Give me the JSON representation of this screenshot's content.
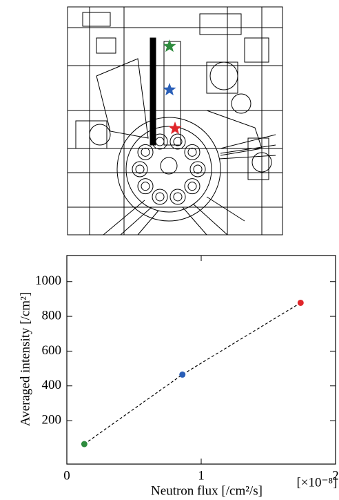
{
  "chart_data": {
    "type": "scatter",
    "x": [
      0.13,
      0.86,
      1.74
    ],
    "values": [
      65,
      465,
      878
    ],
    "colors": [
      "#2e8b3e",
      "#2a5fb8",
      "#e0262a"
    ],
    "xlabel": "Neutron flux [/cm²/s]",
    "ylabel": "Averaged intensity [/cm²]",
    "x_multiplier": "[×10⁻⁸]",
    "xlim": [
      0,
      2
    ],
    "ylim": [
      -50,
      1150
    ],
    "xticks": [
      0,
      1,
      2
    ],
    "yticks": [
      200,
      400,
      600,
      800,
      1000
    ],
    "fit_line": "dashed"
  }
}
